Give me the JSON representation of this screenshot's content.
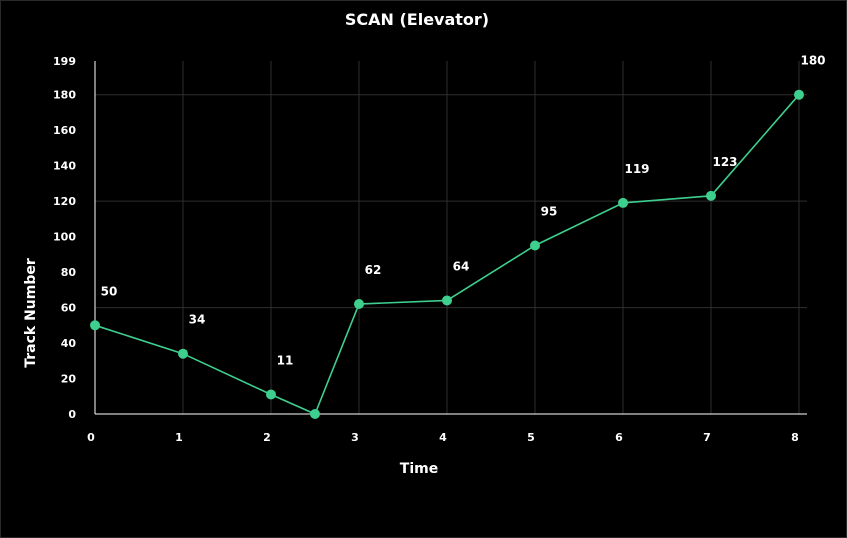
{
  "chart_data": {
    "type": "line",
    "title": "SCAN (Elevator)",
    "xlabel": "Time",
    "ylabel": "Track Number",
    "x_ticks": [
      "0",
      "1",
      "2",
      "3",
      "4",
      "5",
      "6",
      "7",
      "8"
    ],
    "y_ticks": [
      "0",
      "20",
      "40",
      "60",
      "80",
      "100",
      "120",
      "140",
      "160",
      "180",
      "199"
    ],
    "xlim": [
      0,
      8
    ],
    "ylim": [
      0,
      199
    ],
    "grid": true,
    "colors": {
      "background": "#000000",
      "line": "#3ecf8e",
      "grid": "#2e2e2e",
      "axis": "#ffffff",
      "text": "#ffffff"
    },
    "series": [
      {
        "points": [
          {
            "x": 0,
            "y": 50,
            "label": "50"
          },
          {
            "x": 1,
            "y": 34,
            "label": "34"
          },
          {
            "x": 2,
            "y": 11,
            "label": "11"
          },
          {
            "x": 2.5,
            "y": 0,
            "label": ""
          },
          {
            "x": 3,
            "y": 62,
            "label": "62"
          },
          {
            "x": 4,
            "y": 64,
            "label": "64"
          },
          {
            "x": 5,
            "y": 95,
            "label": "95"
          },
          {
            "x": 6,
            "y": 119,
            "label": "119"
          },
          {
            "x": 7,
            "y": 123,
            "label": "123"
          },
          {
            "x": 8,
            "y": 180,
            "label": "180"
          }
        ]
      }
    ]
  }
}
